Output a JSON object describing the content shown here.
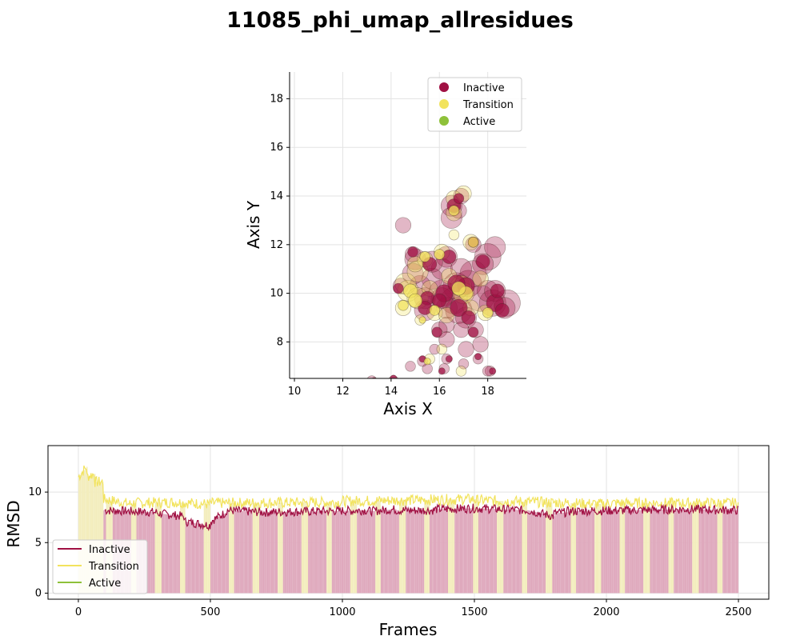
{
  "figure_title": "11085_phi_umap_allresidues",
  "colors": {
    "Inactive": "#a01043",
    "Transition": "#f2e35d",
    "Active": "#8ec13a",
    "Inactive_light": "#dfa9bd",
    "Transition_light": "#f3edbd"
  },
  "chart_data": [
    {
      "type": "scatter",
      "xlabel": "Axis X",
      "ylabel": "Axis Y",
      "xlim": [
        9.8,
        19.6
      ],
      "ylim": [
        6.5,
        19.1
      ],
      "xticks": [
        10,
        12,
        14,
        16,
        18
      ],
      "yticks": [
        8,
        10,
        12,
        14,
        16,
        18
      ],
      "grid": true,
      "legend_position": "top-right",
      "legend": [
        "Inactive",
        "Transition",
        "Active"
      ],
      "series": [
        {
          "name": "Inactive",
          "points": [
            [
              16.2,
              10.0,
              4
            ],
            [
              16.6,
              9.8,
              4
            ],
            [
              17.1,
              10.3,
              4
            ],
            [
              15.8,
              10.6,
              3
            ],
            [
              16.8,
              9.4,
              4
            ],
            [
              17.6,
              9.7,
              4
            ],
            [
              18.3,
              9.6,
              4
            ],
            [
              18.8,
              9.7,
              4
            ],
            [
              18.6,
              9.3,
              3
            ],
            [
              18.1,
              11.5,
              4
            ],
            [
              17.8,
              11.3,
              3
            ],
            [
              18.2,
              11.8,
              3
            ],
            [
              16.4,
              11.5,
              3
            ],
            [
              16.1,
              11.1,
              3
            ],
            [
              15.6,
              11.2,
              3
            ],
            [
              15.1,
              11.4,
              3
            ],
            [
              14.9,
              11.7,
              2
            ],
            [
              14.4,
              12.7,
              2
            ],
            [
              16.6,
              13.6,
              3
            ],
            [
              16.5,
              13.2,
              3
            ],
            [
              16.8,
              13.9,
              2
            ],
            [
              16.9,
              13.4,
              2
            ],
            [
              17.4,
              12.1,
              2
            ],
            [
              17.3,
              10.7,
              4
            ],
            [
              17.2,
              9.0,
              3
            ],
            [
              16.9,
              8.6,
              2
            ],
            [
              17.4,
              8.4,
              2
            ],
            [
              17.2,
              7.7,
              2
            ],
            [
              17.6,
              7.4,
              1
            ],
            [
              16.9,
              7.0,
              1
            ],
            [
              18.2,
              6.8,
              1
            ],
            [
              18.0,
              6.9,
              1
            ],
            [
              16.1,
              6.8,
              1
            ],
            [
              15.6,
              6.9,
              1
            ],
            [
              15.3,
              7.3,
              1
            ],
            [
              16.2,
              9.3,
              3
            ],
            [
              15.5,
              9.8,
              3
            ],
            [
              15.2,
              10.4,
              3
            ],
            [
              14.3,
              10.2,
              2
            ],
            [
              15.0,
              10.8,
              3
            ],
            [
              16.7,
              10.4,
              4
            ],
            [
              17.9,
              10.0,
              3
            ],
            [
              18.4,
              10.1,
              3
            ],
            [
              16.3,
              8.8,
              2
            ],
            [
              15.9,
              8.4,
              2
            ],
            [
              16.4,
              8.1,
              2
            ],
            [
              14.1,
              6.5,
              1
            ],
            [
              14.7,
              6.9,
              1
            ],
            [
              13.3,
              6.4,
              1
            ],
            [
              17.7,
              8.0,
              2
            ],
            [
              16.0,
              9.7,
              3
            ],
            [
              17.0,
              11.0,
              3
            ],
            [
              15.4,
              9.4,
              3
            ],
            [
              15.7,
              7.6,
              1
            ],
            [
              16.4,
              7.3,
              1
            ]
          ]
        },
        {
          "name": "Transition",
          "points": [
            [
              14.8,
              10.1,
              3
            ],
            [
              14.6,
              10.5,
              3
            ],
            [
              15.0,
              9.7,
              3
            ],
            [
              15.2,
              10.9,
              3
            ],
            [
              15.4,
              11.5,
              2
            ],
            [
              14.9,
              11.1,
              2
            ],
            [
              17.1,
              10.0,
              3
            ],
            [
              17.3,
              9.5,
              2
            ],
            [
              16.8,
              10.2,
              3
            ],
            [
              16.7,
              13.9,
              2
            ],
            [
              16.6,
              13.4,
              2
            ],
            [
              16.9,
              14.0,
              2
            ],
            [
              17.4,
              12.1,
              2
            ],
            [
              16.6,
              12.5,
              1
            ],
            [
              16.0,
              11.6,
              2
            ],
            [
              15.7,
              10.2,
              2
            ],
            [
              15.8,
              9.3,
              2
            ],
            [
              16.2,
              9.0,
              2
            ],
            [
              15.3,
              8.9,
              1
            ],
            [
              16.1,
              7.8,
              1
            ],
            [
              15.5,
              7.2,
              1
            ],
            [
              17.0,
              6.8,
              1
            ],
            [
              14.5,
              9.5,
              2
            ],
            [
              17.6,
              10.5,
              2
            ],
            [
              18.0,
              9.2,
              2
            ],
            [
              16.4,
              10.8,
              2
            ]
          ]
        },
        {
          "name": "Active",
          "points": []
        }
      ]
    },
    {
      "type": "line",
      "xlabel": "Frames",
      "ylabel": "RMSD",
      "xlim": [
        -115,
        2615
      ],
      "ylim": [
        -0.6,
        14.6
      ],
      "xticks": [
        0,
        500,
        1000,
        1500,
        2000,
        2500
      ],
      "yticks": [
        0,
        5,
        10
      ],
      "grid": true,
      "legend_position": "lower-left",
      "legend": [
        "Inactive",
        "Transition",
        "Active"
      ],
      "frames": 2500,
      "series": [
        {
          "name": "Inactive",
          "segments": [
            [
              100,
              9.0,
              8.2
            ],
            [
              200,
              8.1,
              8.1
            ],
            [
              300,
              8.0,
              7.9
            ],
            [
              400,
              7.6,
              7.1
            ],
            [
              500,
              6.7,
              7.1
            ],
            [
              560,
              8.0,
              8.2
            ],
            [
              700,
              8.0,
              8.0
            ],
            [
              900,
              8.1,
              8.1
            ],
            [
              1100,
              8.2,
              8.1
            ],
            [
              1200,
              8.3,
              8.2
            ],
            [
              1350,
              8.2,
              8.3
            ],
            [
              1500,
              8.4,
              8.4
            ],
            [
              1700,
              8.2,
              8.2
            ],
            [
              1800,
              7.6,
              7.9
            ],
            [
              1850,
              8.0,
              8.1
            ],
            [
              2100,
              8.2,
              8.2
            ],
            [
              2300,
              8.3,
              8.3
            ],
            [
              2500,
              8.2,
              8.2
            ]
          ]
        },
        {
          "name": "Transition",
          "segments": [
            [
              0,
              10.5,
              11.5
            ],
            [
              30,
              12.5,
              11.5
            ],
            [
              60,
              11.8,
              11.0
            ],
            [
              95,
              11.0,
              9.3
            ],
            [
              200,
              8.8,
              8.9
            ],
            [
              360,
              9.0,
              9.0
            ],
            [
              500,
              8.8,
              8.9
            ],
            [
              1000,
              9.0,
              9.1
            ],
            [
              1500,
              9.3,
              9.2
            ],
            [
              2000,
              8.8,
              8.9
            ],
            [
              2500,
              8.9,
              8.8
            ]
          ]
        },
        {
          "name": "Active",
          "segments": []
        }
      ]
    }
  ]
}
